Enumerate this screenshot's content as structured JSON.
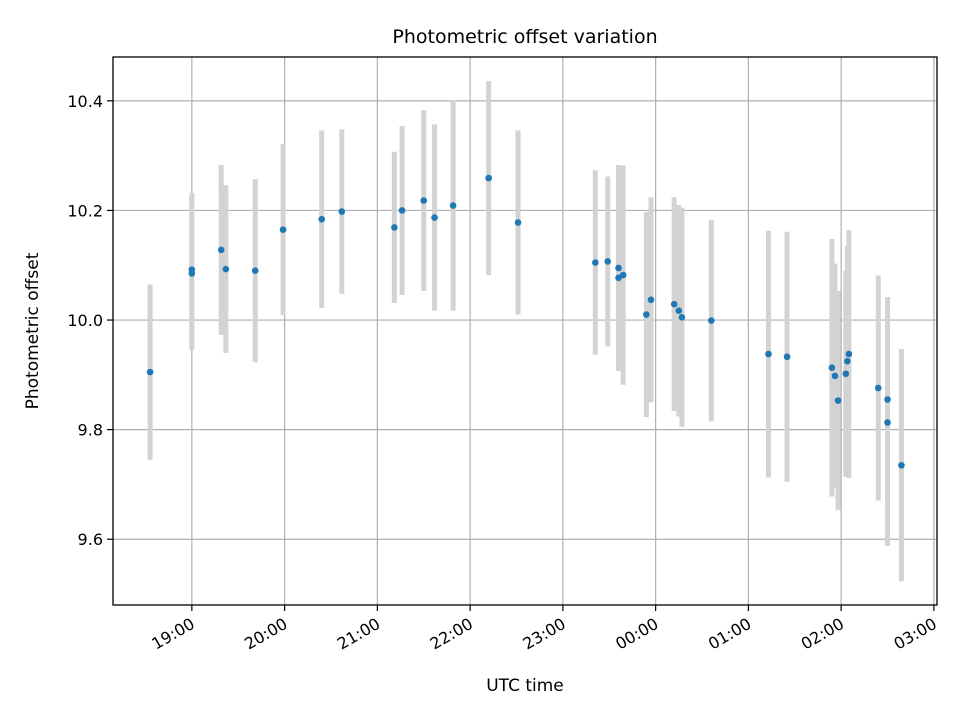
{
  "chart_data": {
    "type": "scatter",
    "title": "Photometric offset variation",
    "xlabel": "UTC time",
    "ylabel": "Photometric offset",
    "grid": true,
    "legend": false,
    "xlim": [
      "18:09",
      "03:02"
    ],
    "ylim": [
      9.48,
      10.48
    ],
    "x_ticks": [
      "19:00",
      "20:00",
      "21:00",
      "22:00",
      "23:00",
      "00:00",
      "01:00",
      "02:00",
      "03:00"
    ],
    "y_ticks": [
      "9.6",
      "9.8",
      "10.0",
      "10.2",
      "10.4"
    ],
    "colors": {
      "point": "#1f77b4",
      "error_bar": "#d3d3d3",
      "grid": "#b0b0b0",
      "axes": "#000000"
    },
    "series": [
      {
        "points": [
          {
            "x": "18:33",
            "y": 9.905,
            "err": 0.16
          },
          {
            "x": "19:00",
            "y": 10.092,
            "err": 0.14
          },
          {
            "x": "19:00",
            "y": 10.085,
            "err": 0.14
          },
          {
            "x": "19:19",
            "y": 10.128,
            "err": 0.155
          },
          {
            "x": "19:22",
            "y": 10.093,
            "err": 0.153
          },
          {
            "x": "19:41",
            "y": 10.09,
            "err": 0.167
          },
          {
            "x": "19:59",
            "y": 10.165,
            "err": 0.156
          },
          {
            "x": "20:24",
            "y": 10.184,
            "err": 0.162
          },
          {
            "x": "20:37",
            "y": 10.198,
            "err": 0.15
          },
          {
            "x": "21:11",
            "y": 10.169,
            "err": 0.138
          },
          {
            "x": "21:16",
            "y": 10.2,
            "err": 0.154
          },
          {
            "x": "21:30",
            "y": 10.218,
            "err": 0.165
          },
          {
            "x": "21:37",
            "y": 10.187,
            "err": 0.17
          },
          {
            "x": "21:49",
            "y": 10.209,
            "err": 0.192
          },
          {
            "x": "22:12",
            "y": 10.259,
            "err": 0.177
          },
          {
            "x": "22:31",
            "y": 10.178,
            "err": 0.168
          },
          {
            "x": "23:21",
            "y": 10.105,
            "err": 0.168
          },
          {
            "x": "23:29",
            "y": 10.107,
            "err": 0.155
          },
          {
            "x": "23:36",
            "y": 10.095,
            "err": 0.188
          },
          {
            "x": "23:36",
            "y": 10.077,
            "err": 0.13
          },
          {
            "x": "23:39",
            "y": 10.082,
            "err": 0.2
          },
          {
            "x": "23:54",
            "y": 10.01,
            "err": 0.187
          },
          {
            "x": "23:57",
            "y": 10.037,
            "err": 0.187
          },
          {
            "x": "00:12",
            "y": 10.029,
            "err": 0.195
          },
          {
            "x": "00:15",
            "y": 10.017,
            "err": 0.193
          },
          {
            "x": "00:17",
            "y": 10.005,
            "err": 0.2
          },
          {
            "x": "00:36",
            "y": 9.999,
            "err": 0.184
          },
          {
            "x": "01:13",
            "y": 9.938,
            "err": 0.225
          },
          {
            "x": "01:25",
            "y": 9.933,
            "err": 0.228
          },
          {
            "x": "01:54",
            "y": 9.913,
            "err": 0.235
          },
          {
            "x": "01:56",
            "y": 9.898,
            "err": 0.205
          },
          {
            "x": "01:58",
            "y": 9.853,
            "err": 0.2
          },
          {
            "x": "02:03",
            "y": 9.902,
            "err": 0.188
          },
          {
            "x": "02:04",
            "y": 9.925,
            "err": 0.21
          },
          {
            "x": "02:05",
            "y": 9.938,
            "err": 0.226
          },
          {
            "x": "02:24",
            "y": 9.876,
            "err": 0.205
          },
          {
            "x": "02:30",
            "y": 9.855,
            "err": 0.187
          },
          {
            "x": "02:30",
            "y": 9.813,
            "err": 0.225
          },
          {
            "x": "02:39",
            "y": 9.735,
            "err": 0.212
          }
        ]
      }
    ]
  }
}
